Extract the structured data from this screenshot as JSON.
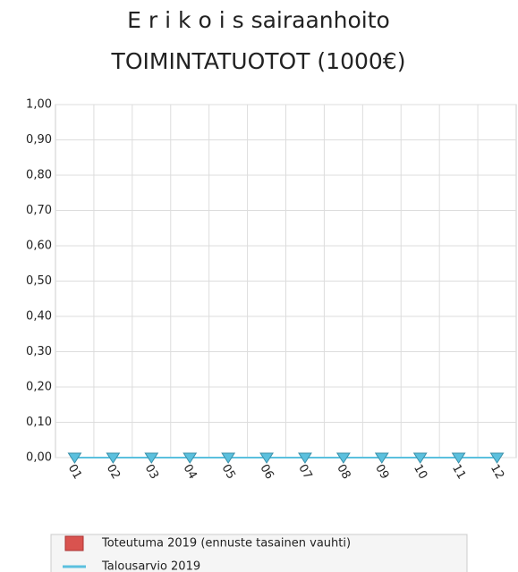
{
  "chart_data": {
    "type": "bar-line",
    "title": "E r i k o i s sairaanhoito",
    "subtitle": "TOIMINTATUOTOT (1000€)",
    "categories": [
      "01",
      "02",
      "03",
      "04",
      "05",
      "06",
      "07",
      "08",
      "09",
      "10",
      "11",
      "12"
    ],
    "series": [
      {
        "name": "Toteutuma 2019 (ennuste tasainen vauhti)",
        "type": "bar",
        "color": "#d9534f",
        "values": [
          0,
          0,
          0,
          0,
          0,
          0,
          0,
          0,
          0,
          0,
          0,
          0
        ]
      },
      {
        "name": "Talousarvio 2019",
        "type": "line",
        "color": "#5bc0de",
        "values": [
          0,
          0,
          0,
          0,
          0,
          0,
          0,
          0,
          0,
          0,
          0,
          0
        ]
      }
    ],
    "ylim": [
      0,
      1
    ],
    "yticks": [
      {
        "value": 0,
        "label": "0,00"
      },
      {
        "value": 0.1,
        "label": "0,10"
      },
      {
        "value": 0.2,
        "label": "0,20"
      },
      {
        "value": 0.3,
        "label": "0,30"
      },
      {
        "value": 0.4,
        "label": "0,40"
      },
      {
        "value": 0.5,
        "label": "0,50"
      },
      {
        "value": 0.6,
        "label": "0,60"
      },
      {
        "value": 0.7,
        "label": "0,70"
      },
      {
        "value": 0.8,
        "label": "0,80"
      },
      {
        "value": 0.9,
        "label": "0,90"
      },
      {
        "value": 1,
        "label": "1,00"
      }
    ],
    "grid": true
  }
}
